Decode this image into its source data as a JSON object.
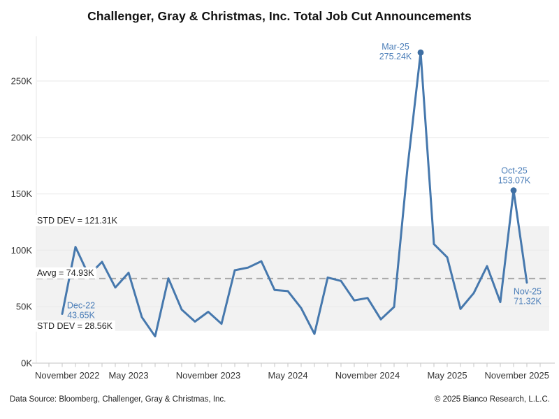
{
  "title": "Challenger, Gray & Christmas, Inc. Total Job Cut Announcements",
  "footer": {
    "left": "Data Source: Bloomberg, Challenger, Gray & Christmas, Inc.",
    "right": "© 2025 Bianco Research, L.L.C."
  },
  "colors": {
    "line": "#4678ad",
    "marker": "#3f6fa3",
    "annotation_text": "#4a7db8",
    "band_fill": "#f2f2f2",
    "avg_dash": "#a8a8a8",
    "gridline": "#ececec",
    "axis_line": "#cfcfcf"
  },
  "chart_data": {
    "type": "line",
    "title": "Challenger, Gray & Christmas, Inc. Total Job Cut Announcements",
    "series_name": "Total Job Cut Announcements",
    "unit": "thousands of announced job cuts",
    "x": [
      "Dec-22",
      "Jan-23",
      "Feb-23",
      "Mar-23",
      "Apr-23",
      "May-23",
      "Jun-23",
      "Jul-23",
      "Aug-23",
      "Sep-23",
      "Oct-23",
      "Nov-23",
      "Dec-23",
      "Jan-24",
      "Feb-24",
      "Mar-24",
      "Apr-24",
      "May-24",
      "Jun-24",
      "Jul-24",
      "Aug-24",
      "Sep-24",
      "Oct-24",
      "Nov-24",
      "Dec-24",
      "Jan-25",
      "Feb-25",
      "Mar-25",
      "Apr-25",
      "May-25",
      "Jun-25",
      "Jul-25",
      "Aug-25",
      "Sep-25",
      "Oct-25",
      "Nov-25"
    ],
    "values": [
      43.65,
      102.94,
      77.77,
      89.7,
      67.0,
      80.09,
      40.71,
      23.7,
      75.15,
      47.46,
      36.84,
      45.51,
      34.82,
      82.31,
      84.64,
      90.31,
      64.79,
      63.82,
      48.79,
      25.89,
      75.89,
      72.82,
      55.6,
      57.73,
      38.79,
      49.8,
      172.02,
      275.24,
      105.44,
      93.82,
      48.0,
      62.08,
      85.98,
      54.06,
      153.07,
      71.32
    ],
    "y_axis": {
      "ticks": [
        0,
        50,
        100,
        150,
        200,
        250
      ],
      "tick_labels": [
        "0K",
        "50K",
        "100K",
        "150K",
        "200K",
        "250K"
      ],
      "range": [
        0,
        287
      ],
      "grid": true
    },
    "x_axis": {
      "minor_tick_months": "monthly",
      "major_labels": [
        {
          "index": -1,
          "label": "November 2022"
        },
        {
          "index": 5,
          "label": "May 2023"
        },
        {
          "index": 11,
          "label": "November 2023"
        },
        {
          "index": 17,
          "label": "May 2024"
        },
        {
          "index": 23,
          "label": "November 2024"
        },
        {
          "index": 29,
          "label": "May 2025"
        },
        {
          "index": 35,
          "label": "November 2025"
        }
      ]
    },
    "stats": {
      "average": 74.93,
      "average_label": "Avvg = 74.93K",
      "upper_std": 121.31,
      "upper_std_label": "STD DEV = 121.31K",
      "lower_std": 28.56,
      "lower_std_label": "STD DEV = 28.56K"
    },
    "annotations": [
      {
        "month_label": "Dec-22",
        "value_label": "43.65K",
        "index": 0,
        "marker": false,
        "placement": "upper-right"
      },
      {
        "month_label": "Mar-25",
        "value_label": "275.24K",
        "index": 27,
        "marker": true,
        "placement": "left"
      },
      {
        "month_label": "Oct-25",
        "value_label": "153.07K",
        "index": 34,
        "marker": true,
        "placement": "above"
      },
      {
        "month_label": "Nov-25",
        "value_label": "71.32K",
        "index": 35,
        "marker": false,
        "placement": "below"
      }
    ],
    "legend": "none"
  }
}
